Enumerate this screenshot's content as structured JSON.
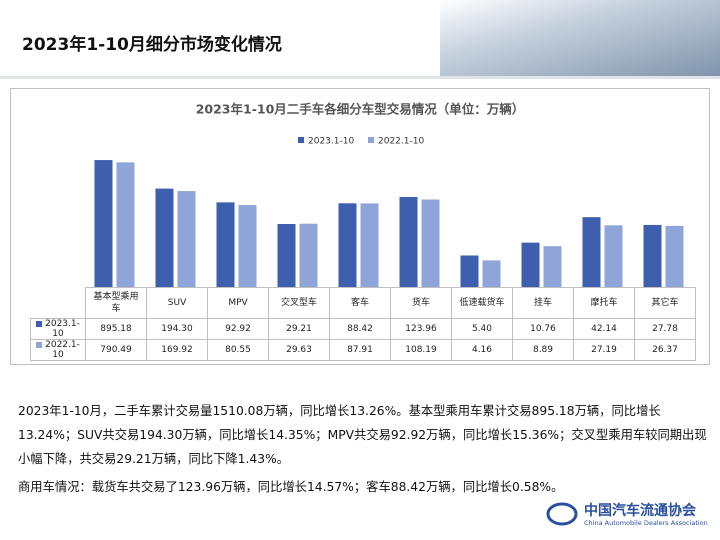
{
  "header": {
    "title": "2023年1-10月细分市场变化情况"
  },
  "chart_data": {
    "type": "bar",
    "title": "2023年1-10月二手车各细分车型交易情况（单位：万辆）",
    "categories": [
      "基本型乘用车",
      "SUV",
      "MPV",
      "交叉型车",
      "客车",
      "货车",
      "低速载货车",
      "挂车",
      "摩托车",
      "其它车"
    ],
    "series": [
      {
        "name": "2023.1-10",
        "color": "#3d5fae",
        "values": [
          895.18,
          194.3,
          92.92,
          29.21,
          88.42,
          123.96,
          5.4,
          10.76,
          42.14,
          27.78
        ],
        "value_labels": [
          "895.18",
          "194.30",
          "92.92",
          "29.21",
          "88.42",
          "123.96",
          "5.40",
          "10.76",
          "42.14",
          "27.78"
        ]
      },
      {
        "name": "2022.1-10",
        "color": "#8fa4d9",
        "values": [
          790.49,
          169.92,
          80.55,
          29.63,
          87.91,
          108.19,
          4.16,
          8.89,
          27.19,
          26.37
        ],
        "value_labels": [
          "790.49",
          "169.92",
          "80.55",
          "29.63",
          "87.91",
          "108.19",
          "4.16",
          "8.89",
          "27.19",
          "26.37"
        ]
      }
    ],
    "log_scale": true,
    "ylim": [
      1,
      1000
    ],
    "legend": "top"
  },
  "paragraphs": [
    "2023年1-10月，二手车累计交易量1510.08万辆，同比增长13.26%。基本型乘用车累计交易895.18万辆，同比增长13.24%；SUV共交易194.30万辆，同比增长14.35%；MPV共交易92.92万辆，同比增长15.36%；交叉型乘用车较同期出现小幅下降，共交易29.21万辆，同比下降1.43%。",
    "商用车情况：载货车共交易了123.96万辆，同比增长14.57%；客车88.42万辆，同比增长0.58%。"
  ],
  "logo": {
    "name": "中国汽车流通协会",
    "english": "China Automobile Dealers Association"
  }
}
